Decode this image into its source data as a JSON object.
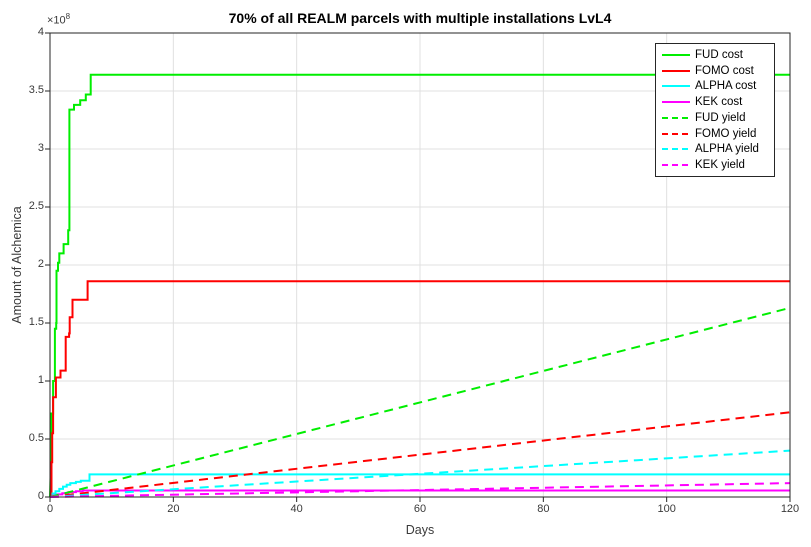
{
  "figure": {
    "title": "70% of all REALM parcels with multiple installations LvL4"
  },
  "axes": {
    "x": {
      "label": "Days",
      "lim": [
        0,
        120
      ],
      "ticks": [
        0,
        20,
        40,
        60,
        80,
        100,
        120
      ],
      "tick_labels": [
        "0",
        "20",
        "40",
        "60",
        "80",
        "100",
        "120"
      ]
    },
    "y": {
      "label": "Amount of Alchemica",
      "lim": [
        0,
        4
      ],
      "ticks": [
        0,
        0.5,
        1,
        1.5,
        2,
        2.5,
        3,
        3.5,
        4
      ],
      "tick_labels": [
        "0",
        "0.5",
        "1",
        "1.5",
        "2",
        "2.5",
        "3",
        "3.5",
        "4"
      ],
      "exponent_base": "×10",
      "exponent_power": "8",
      "scale": "1e8"
    }
  },
  "colors": {
    "green": "#00ee00",
    "red": "#ff0000",
    "cyan": "#00ffff",
    "magenta": "#ff00ff",
    "grid": "#e0e0e0",
    "axis": "#262626",
    "tick_text": "#3a3a3a"
  },
  "chart_data": {
    "type": "line",
    "title": "70% of all REALM parcels with multiple installations LvL4",
    "xlabel": "Days",
    "ylabel": "Amount of Alchemica",
    "x_range": [
      0,
      120
    ],
    "y_range_1e8": [
      0,
      4
    ],
    "y_unit_multiplier": 100000000,
    "grid": true,
    "legend_position": "upper right",
    "series": [
      {
        "id": "fud-cost",
        "name": "FUD cost",
        "color": "#00ee00",
        "style": "solid",
        "points": [
          [
            0,
            0
          ],
          [
            0.15,
            0.3
          ],
          [
            0.15,
            0.55
          ],
          [
            0.25,
            0.55
          ],
          [
            0.25,
            0.72
          ],
          [
            0.5,
            0.72
          ],
          [
            0.5,
            1.0
          ],
          [
            0.8,
            1.0
          ],
          [
            0.8,
            1.45
          ],
          [
            1.0,
            1.45
          ],
          [
            1.0,
            1.5
          ],
          [
            1.05,
            1.5
          ],
          [
            1.05,
            1.95
          ],
          [
            1.3,
            1.95
          ],
          [
            1.3,
            2.02
          ],
          [
            1.5,
            2.02
          ],
          [
            1.5,
            2.1
          ],
          [
            2.2,
            2.1
          ],
          [
            2.2,
            2.18
          ],
          [
            2.95,
            2.18
          ],
          [
            2.95,
            2.3
          ],
          [
            3.15,
            2.3
          ],
          [
            3.15,
            3.34
          ],
          [
            3.9,
            3.34
          ],
          [
            3.9,
            3.38
          ],
          [
            4.9,
            3.38
          ],
          [
            4.9,
            3.42
          ],
          [
            5.8,
            3.42
          ],
          [
            5.8,
            3.47
          ],
          [
            6.6,
            3.47
          ],
          [
            6.6,
            3.64
          ],
          [
            120,
            3.64
          ]
        ]
      },
      {
        "id": "fomo-cost",
        "name": "FOMO cost",
        "color": "#ff0000",
        "style": "solid",
        "points": [
          [
            0,
            0
          ],
          [
            0.25,
            0
          ],
          [
            0.25,
            0.3
          ],
          [
            0.35,
            0.3
          ],
          [
            0.35,
            0.55
          ],
          [
            0.5,
            0.55
          ],
          [
            0.5,
            0.86
          ],
          [
            0.95,
            0.86
          ],
          [
            0.95,
            1.03
          ],
          [
            1.7,
            1.03
          ],
          [
            1.7,
            1.09
          ],
          [
            2.55,
            1.09
          ],
          [
            2.55,
            1.38
          ],
          [
            3.1,
            1.38
          ],
          [
            3.1,
            1.41
          ],
          [
            3.2,
            1.41
          ],
          [
            3.2,
            1.55
          ],
          [
            3.65,
            1.55
          ],
          [
            3.65,
            1.7
          ],
          [
            6.1,
            1.7
          ],
          [
            6.1,
            1.86
          ],
          [
            120,
            1.86
          ]
        ]
      },
      {
        "id": "alpha-cost",
        "name": "ALPHA cost",
        "color": "#00ffff",
        "style": "solid",
        "points": [
          [
            0,
            0
          ],
          [
            0.4,
            0
          ],
          [
            0.4,
            0.03
          ],
          [
            0.9,
            0.03
          ],
          [
            0.9,
            0.05
          ],
          [
            1.5,
            0.05
          ],
          [
            1.5,
            0.07
          ],
          [
            2.1,
            0.07
          ],
          [
            2.1,
            0.09
          ],
          [
            2.7,
            0.09
          ],
          [
            2.7,
            0.105
          ],
          [
            3.3,
            0.105
          ],
          [
            3.3,
            0.12
          ],
          [
            4.2,
            0.12
          ],
          [
            4.2,
            0.13
          ],
          [
            5.0,
            0.13
          ],
          [
            5.0,
            0.14
          ],
          [
            6.4,
            0.14
          ],
          [
            6.4,
            0.195
          ],
          [
            120,
            0.195
          ]
        ]
      },
      {
        "id": "kek-cost",
        "name": "KEK cost",
        "color": "#ff00ff",
        "style": "solid",
        "points": [
          [
            0,
            0
          ],
          [
            0.5,
            0
          ],
          [
            0.5,
            0.012
          ],
          [
            1.2,
            0.012
          ],
          [
            1.2,
            0.022
          ],
          [
            2.0,
            0.022
          ],
          [
            2.0,
            0.032
          ],
          [
            3.0,
            0.032
          ],
          [
            3.0,
            0.042
          ],
          [
            4.2,
            0.042
          ],
          [
            4.2,
            0.05
          ],
          [
            5.3,
            0.05
          ],
          [
            5.3,
            0.056
          ],
          [
            120,
            0.056
          ]
        ]
      },
      {
        "id": "fud-yield",
        "name": "FUD yield",
        "color": "#00ee00",
        "style": "dashed",
        "points": [
          [
            0,
            0
          ],
          [
            120,
            1.63
          ]
        ]
      },
      {
        "id": "fomo-yield",
        "name": "FOMO yield",
        "color": "#ff0000",
        "style": "dashed",
        "points": [
          [
            0,
            0
          ],
          [
            120,
            0.73
          ]
        ]
      },
      {
        "id": "alpha-yield",
        "name": "ALPHA yield",
        "color": "#00ffff",
        "style": "dashed",
        "points": [
          [
            0,
            0
          ],
          [
            120,
            0.4
          ]
        ]
      },
      {
        "id": "kek-yield",
        "name": "KEK yield",
        "color": "#ff00ff",
        "style": "dashed",
        "points": [
          [
            0,
            0
          ],
          [
            120,
            0.12
          ]
        ]
      }
    ]
  }
}
